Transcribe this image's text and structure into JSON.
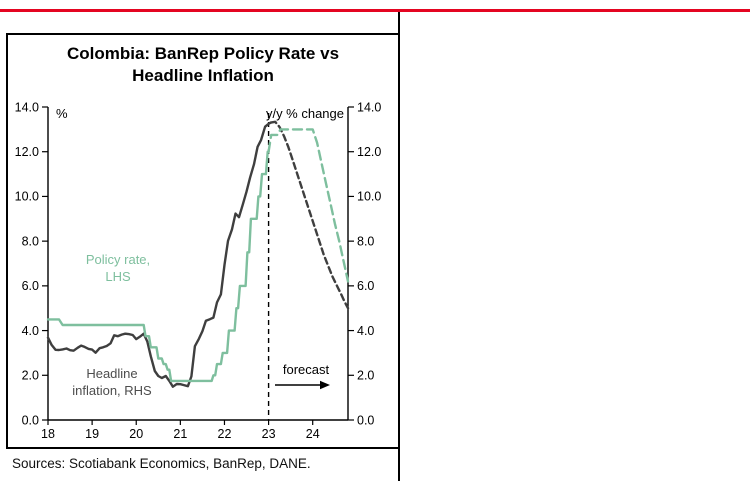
{
  "header": {
    "title_line1": "Colombia: BanRep Policy Rate vs",
    "title_line2": "Headline Inflation"
  },
  "labels": {
    "unit_left": "%",
    "unit_right": "y/y % change",
    "policy_line1": "Policy rate,",
    "policy_line2": "LHS",
    "inflation_line1": "Headline",
    "inflation_line2": "inflation, RHS",
    "forecast": "forecast"
  },
  "footer": {
    "sources": "Sources: Scotiabank Economics, BanRep, DANE."
  },
  "colors": {
    "accent_red": "#e40521",
    "policy_green": "#7ebf9e",
    "inflation_gray": "#3f3f3f"
  },
  "chart_data": {
    "type": "line",
    "title": "Colombia: BanRep Policy Rate vs Headline Inflation",
    "left_axis_label": "%",
    "right_axis_label": "y/y % change",
    "xlim": [
      18,
      24.8
    ],
    "ylim": [
      0,
      14
    ],
    "x_ticks": [
      18,
      19,
      20,
      21,
      22,
      23,
      24
    ],
    "y_ticks": [
      0,
      2,
      4,
      6,
      8,
      10,
      12,
      14
    ],
    "y_tick_decimals": 1,
    "grid": false,
    "legend_position": "in-plot-text",
    "forecast_start_x": 23.0,
    "forecast_label": "forecast",
    "series": [
      {
        "name": "Headline inflation, RHS",
        "axis": "right",
        "color": "#3f3f3f",
        "forecast_dash": "6 4",
        "solid": [
          [
            18.0,
            3.68
          ],
          [
            18.08,
            3.37
          ],
          [
            18.17,
            3.14
          ],
          [
            18.25,
            3.13
          ],
          [
            18.33,
            3.16
          ],
          [
            18.42,
            3.2
          ],
          [
            18.5,
            3.12
          ],
          [
            18.58,
            3.1
          ],
          [
            18.67,
            3.23
          ],
          [
            18.75,
            3.33
          ],
          [
            18.83,
            3.27
          ],
          [
            18.92,
            3.18
          ],
          [
            19.0,
            3.15
          ],
          [
            19.08,
            3.01
          ],
          [
            19.17,
            3.21
          ],
          [
            19.25,
            3.25
          ],
          [
            19.33,
            3.31
          ],
          [
            19.42,
            3.43
          ],
          [
            19.5,
            3.79
          ],
          [
            19.58,
            3.75
          ],
          [
            19.67,
            3.82
          ],
          [
            19.75,
            3.86
          ],
          [
            19.83,
            3.84
          ],
          [
            19.92,
            3.8
          ],
          [
            20.0,
            3.62
          ],
          [
            20.08,
            3.72
          ],
          [
            20.17,
            3.86
          ],
          [
            20.25,
            3.51
          ],
          [
            20.33,
            2.85
          ],
          [
            20.42,
            2.19
          ],
          [
            20.5,
            1.97
          ],
          [
            20.58,
            1.88
          ],
          [
            20.67,
            1.97
          ],
          [
            20.75,
            1.75
          ],
          [
            20.83,
            1.49
          ],
          [
            20.92,
            1.61
          ],
          [
            21.0,
            1.6
          ],
          [
            21.08,
            1.56
          ],
          [
            21.17,
            1.51
          ],
          [
            21.25,
            1.95
          ],
          [
            21.33,
            3.3
          ],
          [
            21.42,
            3.63
          ],
          [
            21.5,
            3.97
          ],
          [
            21.58,
            4.44
          ],
          [
            21.67,
            4.51
          ],
          [
            21.75,
            4.58
          ],
          [
            21.83,
            5.26
          ],
          [
            21.92,
            5.62
          ],
          [
            22.0,
            6.94
          ],
          [
            22.08,
            8.01
          ],
          [
            22.17,
            8.53
          ],
          [
            22.25,
            9.23
          ],
          [
            22.33,
            9.07
          ],
          [
            22.42,
            9.67
          ],
          [
            22.5,
            10.21
          ],
          [
            22.58,
            10.84
          ],
          [
            22.67,
            11.44
          ],
          [
            22.75,
            12.22
          ],
          [
            22.83,
            12.53
          ],
          [
            22.92,
            13.12
          ],
          [
            23.0,
            13.25
          ],
          [
            23.05,
            13.3
          ]
        ],
        "forecast": [
          [
            23.05,
            13.3
          ],
          [
            23.15,
            13.34
          ],
          [
            23.25,
            13.1
          ],
          [
            23.35,
            12.7
          ],
          [
            23.45,
            12.2
          ],
          [
            23.55,
            11.6
          ],
          [
            23.65,
            11.0
          ],
          [
            23.75,
            10.4
          ],
          [
            23.85,
            9.8
          ],
          [
            23.95,
            9.2
          ],
          [
            24.05,
            8.6
          ],
          [
            24.15,
            8.0
          ],
          [
            24.25,
            7.4
          ],
          [
            24.35,
            6.9
          ],
          [
            24.45,
            6.4
          ],
          [
            24.55,
            6.0
          ],
          [
            24.65,
            5.6
          ],
          [
            24.72,
            5.3
          ],
          [
            24.8,
            5.0
          ]
        ]
      },
      {
        "name": "Policy rate, LHS",
        "axis": "left",
        "color": "#7ebf9e",
        "forecast_dash": "9 5",
        "solid": [
          [
            18.0,
            4.5
          ],
          [
            18.25,
            4.5
          ],
          [
            18.33,
            4.25
          ],
          [
            20.17,
            4.25
          ],
          [
            20.21,
            3.75
          ],
          [
            20.29,
            3.75
          ],
          [
            20.33,
            3.25
          ],
          [
            20.46,
            3.25
          ],
          [
            20.5,
            2.75
          ],
          [
            20.58,
            2.75
          ],
          [
            20.62,
            2.5
          ],
          [
            20.67,
            2.5
          ],
          [
            20.71,
            2.25
          ],
          [
            20.75,
            2.25
          ],
          [
            20.79,
            1.75
          ],
          [
            21.71,
            1.75
          ],
          [
            21.75,
            2.0
          ],
          [
            21.79,
            2.0
          ],
          [
            21.83,
            2.5
          ],
          [
            21.92,
            2.5
          ],
          [
            21.96,
            3.0
          ],
          [
            22.06,
            3.0
          ],
          [
            22.1,
            4.0
          ],
          [
            22.23,
            4.0
          ],
          [
            22.27,
            5.0
          ],
          [
            22.31,
            5.0
          ],
          [
            22.35,
            6.0
          ],
          [
            22.48,
            6.0
          ],
          [
            22.52,
            7.5
          ],
          [
            22.56,
            7.5
          ],
          [
            22.6,
            9.0
          ],
          [
            22.73,
            9.0
          ],
          [
            22.77,
            10.0
          ],
          [
            22.81,
            10.0
          ],
          [
            22.85,
            11.0
          ],
          [
            22.94,
            11.0
          ],
          [
            22.98,
            12.0
          ],
          [
            23.0,
            12.0
          ]
        ],
        "forecast": [
          [
            23.0,
            12.0
          ],
          [
            23.06,
            12.75
          ],
          [
            23.2,
            12.75
          ],
          [
            23.27,
            13.0
          ],
          [
            24.0,
            13.0
          ],
          [
            24.1,
            12.4
          ],
          [
            24.2,
            11.5
          ],
          [
            24.3,
            10.6
          ],
          [
            24.4,
            9.7
          ],
          [
            24.5,
            8.8
          ],
          [
            24.6,
            8.0
          ],
          [
            24.7,
            7.1
          ],
          [
            24.8,
            6.2
          ]
        ]
      }
    ]
  }
}
